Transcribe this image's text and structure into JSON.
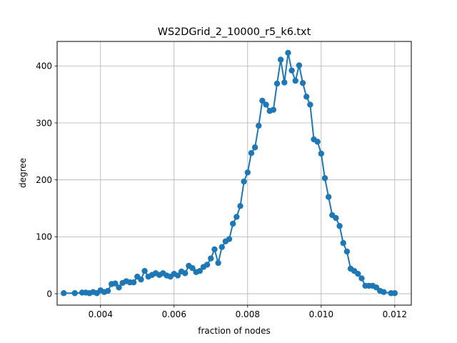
{
  "chart_data": {
    "type": "line",
    "title": "WS2DGrid_2_10000_r5_k6.txt",
    "xlabel": "fraction of nodes",
    "ylabel": "degree",
    "xlim": [
      0.00282,
      0.01245
    ],
    "ylim": [
      -20,
      443
    ],
    "xticks": [
      0.004,
      0.006,
      0.008,
      0.01,
      0.012
    ],
    "xtick_labels": [
      "0.004",
      "0.006",
      "0.008",
      "0.010",
      "0.012"
    ],
    "yticks": [
      0,
      100,
      200,
      300,
      400
    ],
    "ytick_labels": [
      "0",
      "100",
      "200",
      "300",
      "400"
    ],
    "grid": true,
    "marker": "circle",
    "line_color": "#1f77b4",
    "series": [
      {
        "x": [
          0.003,
          0.0033,
          0.0035,
          0.0036,
          0.0037,
          0.0038,
          0.0039,
          0.004,
          0.0041,
          0.0042,
          0.0043,
          0.0044,
          0.0045,
          0.0046,
          0.0047,
          0.0048,
          0.0049,
          0.005,
          0.0051,
          0.0052,
          0.0053,
          0.0054,
          0.0055,
          0.0056,
          0.0057,
          0.0058,
          0.0059,
          0.006,
          0.0061,
          0.0062,
          0.0063,
          0.0064,
          0.0065,
          0.0066,
          0.0067,
          0.0068,
          0.0069,
          0.007,
          0.0071,
          0.0072,
          0.0073,
          0.0074,
          0.0075,
          0.0076,
          0.0077,
          0.0078,
          0.0079,
          0.008,
          0.0081,
          0.0082,
          0.0083,
          0.0084,
          0.0085,
          0.0086,
          0.0087,
          0.0088,
          0.0089,
          0.009,
          0.0091,
          0.0092,
          0.0093,
          0.0094,
          0.0095,
          0.0096,
          0.0097,
          0.0098,
          0.0099,
          0.01,
          0.0101,
          0.0102,
          0.0103,
          0.0104,
          0.0105,
          0.0106,
          0.0107,
          0.0108,
          0.0109,
          0.011,
          0.0111,
          0.0112,
          0.0113,
          0.0114,
          0.0115,
          0.0116,
          0.0117,
          0.0119,
          0.012
        ],
        "y": [
          1,
          1,
          2,
          2,
          1,
          3,
          1,
          6,
          3,
          5,
          17,
          18,
          11,
          19,
          22,
          20,
          20,
          30,
          25,
          40,
          30,
          33,
          36,
          33,
          36,
          32,
          30,
          35,
          32,
          39,
          36,
          49,
          45,
          38,
          40,
          47,
          51,
          62,
          78,
          54,
          82,
          92,
          96,
          123,
          135,
          154,
          197,
          213,
          247,
          257,
          295,
          339,
          332,
          321,
          323,
          369,
          411,
          371,
          423,
          392,
          374,
          401,
          370,
          346,
          332,
          271,
          267,
          246,
          203,
          170,
          138,
          133,
          119,
          89,
          74,
          44,
          40,
          35,
          27,
          14,
          14,
          14,
          11,
          5,
          3,
          1,
          1
        ]
      }
    ]
  }
}
